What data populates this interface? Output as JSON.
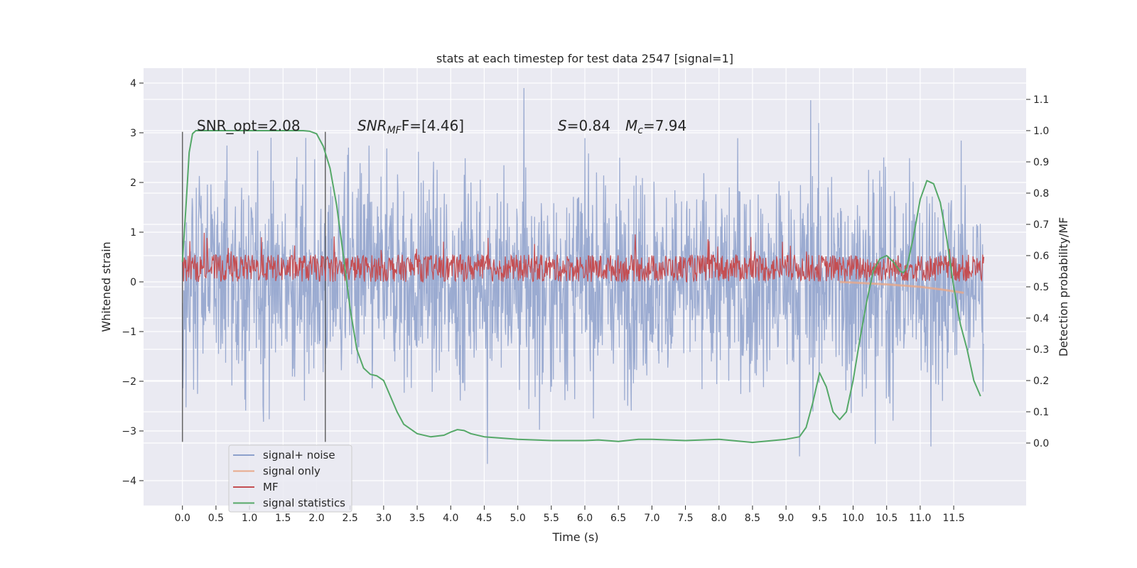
{
  "chart_data": {
    "type": "line",
    "title": "stats at each timestep for test data 2547 [signal=1]",
    "xlabel": "Time (s)",
    "ylabel_left": "Whitened strain",
    "ylabel_right": "Detection probability/MF",
    "xlim": [
      -0.58,
      12.58
    ],
    "ylim_left": [
      -4.5,
      4.3
    ],
    "ylim_right": [
      -0.2,
      1.2
    ],
    "xticks": [
      "0.0",
      "0.5",
      "1.0",
      "1.5",
      "2.0",
      "2.5",
      "3.0",
      "3.5",
      "4.0",
      "4.5",
      "5.0",
      "5.5",
      "6.0",
      "6.5",
      "7.0",
      "7.5",
      "8.0",
      "8.5",
      "9.0",
      "9.5",
      "10.0",
      "10.5",
      "11.0",
      "11.5"
    ],
    "yticks_left": [
      "−4",
      "−3",
      "−2",
      "−1",
      "0",
      "1",
      "2",
      "3",
      "4"
    ],
    "yticks_right": [
      "0.0",
      "0.1",
      "0.2",
      "0.3",
      "0.4",
      "0.5",
      "0.6",
      "0.7",
      "0.8",
      "0.9",
      "1.0",
      "1.1"
    ],
    "grid": true,
    "legend": {
      "placement": "lower-left",
      "entries": [
        {
          "label": "signal+ noise",
          "color": "#8da0cb"
        },
        {
          "label": "signal only",
          "color": "#e8a98a"
        },
        {
          "label": "MF",
          "color": "#c44e52"
        },
        {
          "label": "signal statistics",
          "color": "#55a868"
        }
      ]
    },
    "annotations": {
      "snr_opt": "SNR_opt=2.08",
      "snr_mf_main": "SNR",
      "snr_mf_sub": "MF",
      "snr_mf_rest": "F=[4.46]",
      "s_label": "S",
      "s_value": "=0.84",
      "mc_label": "M",
      "mc_sub": "c",
      "mc_value": "=7.94"
    },
    "vertical_markers_x": [
      0.0,
      2.13
    ],
    "signal_noise": {
      "name": "signal+ noise",
      "x_start": 0.0,
      "x_end": 11.95,
      "amplitude_range": [
        -4.1,
        3.9
      ]
    },
    "signal_only": {
      "name": "signal only",
      "x": [
        9.8,
        10.5,
        11.0,
        11.3,
        11.55,
        11.65
      ],
      "y": [
        0.0,
        -0.05,
        -0.1,
        -0.15,
        -0.2,
        -0.22
      ]
    },
    "mf": {
      "name": "MF",
      "x_start": 0.0,
      "x_end": 11.95,
      "baseline": 0.0,
      "typical_max": 0.55,
      "peak_max": 1.0
    },
    "signal_statistics": {
      "name": "signal statistics",
      "x": [
        0.0,
        0.05,
        0.1,
        0.15,
        0.2,
        0.3,
        0.5,
        1.0,
        1.5,
        1.8,
        1.9,
        2.0,
        2.1,
        2.2,
        2.3,
        2.4,
        2.5,
        2.6,
        2.7,
        2.8,
        2.9,
        3.0,
        3.1,
        3.2,
        3.3,
        3.5,
        3.7,
        3.9,
        4.0,
        4.1,
        4.2,
        4.3,
        4.5,
        5.0,
        5.5,
        6.0,
        6.2,
        6.5,
        6.8,
        7.0,
        7.5,
        8.0,
        8.5,
        9.0,
        9.2,
        9.3,
        9.4,
        9.5,
        9.6,
        9.7,
        9.8,
        9.9,
        10.0,
        10.1,
        10.2,
        10.3,
        10.4,
        10.5,
        10.6,
        10.7,
        10.75,
        10.8,
        10.9,
        11.0,
        11.1,
        11.2,
        11.3,
        11.4,
        11.5,
        11.6,
        11.7,
        11.8,
        11.9
      ],
      "y": [
        0.58,
        0.75,
        0.93,
        0.99,
        1.0,
        1.0,
        1.0,
        1.0,
        1.0,
        1.0,
        0.998,
        0.99,
        0.95,
        0.88,
        0.76,
        0.6,
        0.43,
        0.3,
        0.24,
        0.22,
        0.215,
        0.2,
        0.15,
        0.1,
        0.06,
        0.03,
        0.02,
        0.025,
        0.035,
        0.043,
        0.04,
        0.03,
        0.02,
        0.012,
        0.008,
        0.008,
        0.01,
        0.005,
        0.012,
        0.012,
        0.008,
        0.012,
        0.002,
        0.012,
        0.02,
        0.05,
        0.13,
        0.225,
        0.18,
        0.1,
        0.075,
        0.1,
        0.2,
        0.33,
        0.45,
        0.55,
        0.59,
        0.6,
        0.58,
        0.55,
        0.545,
        0.56,
        0.66,
        0.78,
        0.84,
        0.83,
        0.77,
        0.65,
        0.5,
        0.38,
        0.3,
        0.2,
        0.15
      ]
    }
  }
}
